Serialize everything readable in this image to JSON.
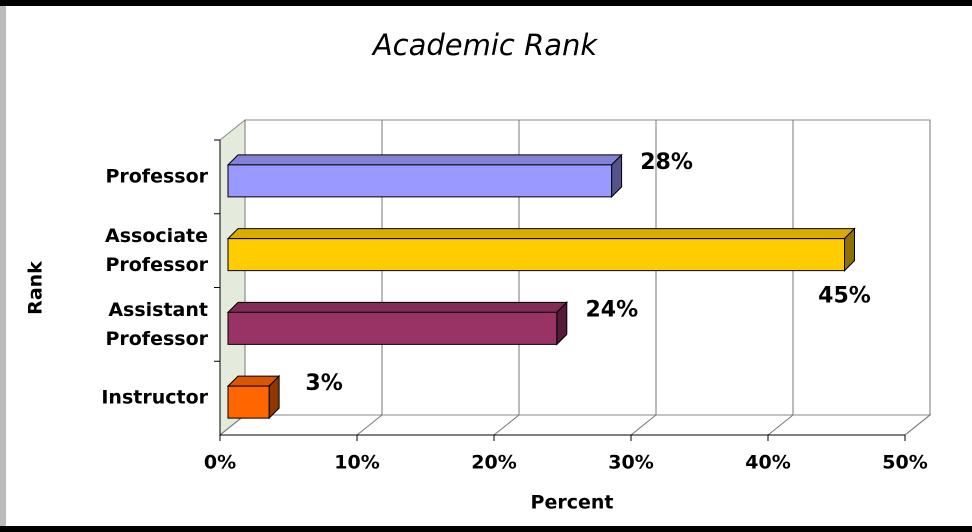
{
  "chart_data": {
    "type": "bar",
    "orientation": "horizontal",
    "title": "Academic Rank",
    "x_label": "Percent",
    "y_label": "Rank",
    "categories": [
      "Professor",
      "Associate Professor",
      "Assistant Professor",
      "Instructor"
    ],
    "values": [
      28,
      45,
      24,
      3
    ],
    "value_labels": [
      "28%",
      "45%",
      "24%",
      "3%"
    ],
    "colors": [
      "#9999ff",
      "#ffcc00",
      "#993366",
      "#ff6600"
    ],
    "xlim": [
      0,
      50
    ],
    "xticks": [
      {
        "value": 0,
        "label": "0%"
      },
      {
        "value": 10,
        "label": "10%"
      },
      {
        "value": 20,
        "label": "20%"
      },
      {
        "value": 30,
        "label": "30%"
      },
      {
        "value": 40,
        "label": "40%"
      },
      {
        "value": 50,
        "label": "50%"
      }
    ],
    "grid": true
  }
}
